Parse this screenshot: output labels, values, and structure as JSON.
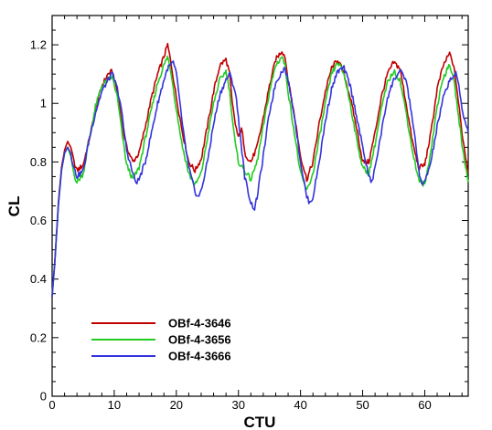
{
  "chart_data": {
    "type": "line",
    "title": "",
    "xlabel": "CTU",
    "ylabel": "CL",
    "xlim": [
      0,
      67
    ],
    "ylim": [
      0,
      1.3
    ],
    "x_ticks": [
      "0",
      "10",
      "20",
      "30",
      "40",
      "50",
      "60"
    ],
    "y_ticks": [
      "0",
      "0.2",
      "0.4",
      "0.6",
      "0.8",
      "1",
      "1.2"
    ],
    "grid": false,
    "legend_position": "bottom-left",
    "series": [
      {
        "name": "OBf-4-3646",
        "color": "#c00000",
        "points": [
          [
            0,
            0.34
          ],
          [
            0.5,
            0.48
          ],
          [
            1,
            0.66
          ],
          [
            1.5,
            0.78
          ],
          [
            2,
            0.84
          ],
          [
            2.5,
            0.87
          ],
          [
            3,
            0.85
          ],
          [
            3.5,
            0.8
          ],
          [
            4,
            0.77
          ],
          [
            5,
            0.79
          ],
          [
            6,
            0.88
          ],
          [
            7,
            0.98
          ],
          [
            8,
            1.06
          ],
          [
            9,
            1.1
          ],
          [
            9.7,
            1.11
          ],
          [
            10.5,
            1.04
          ],
          [
            11,
            0.97
          ],
          [
            11.5,
            0.9
          ],
          [
            12,
            0.85
          ],
          [
            13,
            0.8
          ],
          [
            14,
            0.83
          ],
          [
            15,
            0.92
          ],
          [
            16,
            1.02
          ],
          [
            17,
            1.1
          ],
          [
            18,
            1.16
          ],
          [
            18.6,
            1.2
          ],
          [
            19.2,
            1.13
          ],
          [
            20,
            1.02
          ],
          [
            21,
            0.9
          ],
          [
            22,
            0.8
          ],
          [
            23,
            0.77
          ],
          [
            24,
            0.81
          ],
          [
            25,
            0.92
          ],
          [
            26,
            1.04
          ],
          [
            27,
            1.13
          ],
          [
            28,
            1.15
          ],
          [
            28.6,
            1.1
          ],
          [
            29,
            1.0
          ],
          [
            29.5,
            0.93
          ],
          [
            30,
            0.88
          ],
          [
            30.5,
            0.92
          ],
          [
            31,
            0.83
          ],
          [
            32,
            0.8
          ],
          [
            33,
            0.85
          ],
          [
            34,
            0.95
          ],
          [
            35,
            1.06
          ],
          [
            36,
            1.15
          ],
          [
            37,
            1.18
          ],
          [
            37.5,
            1.16
          ],
          [
            38,
            1.08
          ],
          [
            39,
            0.96
          ],
          [
            40,
            0.82
          ],
          [
            41,
            0.74
          ],
          [
            42,
            0.8
          ],
          [
            43,
            0.93
          ],
          [
            44,
            1.04
          ],
          [
            45,
            1.12
          ],
          [
            46,
            1.15
          ],
          [
            47,
            1.1
          ],
          [
            48,
            1.02
          ],
          [
            49,
            0.92
          ],
          [
            50,
            0.8
          ],
          [
            51,
            0.8
          ],
          [
            52,
            0.9
          ],
          [
            53,
            1.02
          ],
          [
            54,
            1.1
          ],
          [
            55,
            1.14
          ],
          [
            56,
            1.12
          ],
          [
            57,
            1.0
          ],
          [
            58,
            0.87
          ],
          [
            59,
            0.78
          ],
          [
            60,
            0.79
          ],
          [
            61,
            0.9
          ],
          [
            62,
            1.05
          ],
          [
            63,
            1.13
          ],
          [
            64,
            1.17
          ],
          [
            64.5,
            1.14
          ],
          [
            65,
            1.08
          ],
          [
            66,
            0.9
          ],
          [
            67,
            0.76
          ]
        ]
      },
      {
        "name": "OBf-4-3656",
        "color": "#22cc22",
        "points": [
          [
            0,
            0.34
          ],
          [
            0.5,
            0.48
          ],
          [
            1,
            0.65
          ],
          [
            1.5,
            0.77
          ],
          [
            2,
            0.83
          ],
          [
            2.5,
            0.85
          ],
          [
            3,
            0.82
          ],
          [
            3.5,
            0.76
          ],
          [
            4,
            0.73
          ],
          [
            5,
            0.76
          ],
          [
            6,
            0.88
          ],
          [
            7,
            0.99
          ],
          [
            8,
            1.06
          ],
          [
            9,
            1.08
          ],
          [
            9.7,
            1.09
          ],
          [
            10.5,
            1.02
          ],
          [
            11,
            0.94
          ],
          [
            11.5,
            0.86
          ],
          [
            12,
            0.79
          ],
          [
            13,
            0.74
          ],
          [
            14,
            0.78
          ],
          [
            15,
            0.88
          ],
          [
            16,
            0.98
          ],
          [
            17,
            1.07
          ],
          [
            18,
            1.13
          ],
          [
            18.6,
            1.16
          ],
          [
            19.2,
            1.1
          ],
          [
            20,
            0.98
          ],
          [
            21,
            0.85
          ],
          [
            22,
            0.76
          ],
          [
            23,
            0.72
          ],
          [
            24,
            0.76
          ],
          [
            25,
            0.88
          ],
          [
            26,
            1.0
          ],
          [
            27,
            1.08
          ],
          [
            28,
            1.11
          ],
          [
            28.6,
            1.04
          ],
          [
            29,
            0.95
          ],
          [
            29.5,
            0.86
          ],
          [
            30,
            0.8
          ],
          [
            31,
            0.77
          ],
          [
            32,
            0.74
          ],
          [
            33,
            0.8
          ],
          [
            34,
            0.92
          ],
          [
            35,
            1.04
          ],
          [
            36,
            1.13
          ],
          [
            37,
            1.16
          ],
          [
            37.5,
            1.13
          ],
          [
            38,
            1.04
          ],
          [
            39,
            0.9
          ],
          [
            40,
            0.76
          ],
          [
            41,
            0.7
          ],
          [
            42,
            0.76
          ],
          [
            43,
            0.88
          ],
          [
            44,
            1.0
          ],
          [
            45,
            1.1
          ],
          [
            46,
            1.14
          ],
          [
            47,
            1.1
          ],
          [
            48,
            1.0
          ],
          [
            49,
            0.88
          ],
          [
            50,
            0.78
          ],
          [
            51,
            0.76
          ],
          [
            52,
            0.86
          ],
          [
            53,
            0.98
          ],
          [
            54,
            1.07
          ],
          [
            55,
            1.11
          ],
          [
            56,
            1.08
          ],
          [
            57,
            0.97
          ],
          [
            58,
            0.84
          ],
          [
            59,
            0.74
          ],
          [
            60,
            0.72
          ],
          [
            61,
            0.84
          ],
          [
            62,
            0.99
          ],
          [
            63,
            1.09
          ],
          [
            64,
            1.13
          ],
          [
            64.5,
            1.1
          ],
          [
            65,
            1.03
          ],
          [
            66,
            0.86
          ],
          [
            67,
            0.73
          ]
        ]
      },
      {
        "name": "OBf-4-3666",
        "color": "#3333dd",
        "points": [
          [
            0,
            0.34
          ],
          [
            0.5,
            0.48
          ],
          [
            1,
            0.65
          ],
          [
            1.5,
            0.77
          ],
          [
            2,
            0.83
          ],
          [
            2.5,
            0.85
          ],
          [
            3,
            0.83
          ],
          [
            3.5,
            0.78
          ],
          [
            4,
            0.75
          ],
          [
            5,
            0.77
          ],
          [
            6,
            0.88
          ],
          [
            7,
            0.97
          ],
          [
            8,
            1.04
          ],
          [
            9,
            1.08
          ],
          [
            9.7,
            1.1
          ],
          [
            10.5,
            1.05
          ],
          [
            11,
            1.0
          ],
          [
            11.5,
            0.92
          ],
          [
            12,
            0.84
          ],
          [
            13,
            0.76
          ],
          [
            13.5,
            0.73
          ],
          [
            14,
            0.74
          ],
          [
            15,
            0.8
          ],
          [
            16,
            0.9
          ],
          [
            17,
            1.0
          ],
          [
            18,
            1.08
          ],
          [
            18.6,
            1.12
          ],
          [
            19.5,
            1.14
          ],
          [
            20,
            1.1
          ],
          [
            20.5,
            1.02
          ],
          [
            21,
            0.92
          ],
          [
            22,
            0.78
          ],
          [
            23,
            0.7
          ],
          [
            23.5,
            0.68
          ],
          [
            24,
            0.7
          ],
          [
            25,
            0.8
          ],
          [
            26,
            0.93
          ],
          [
            27,
            1.03
          ],
          [
            28,
            1.08
          ],
          [
            28.6,
            1.1
          ],
          [
            29.5,
            1.04
          ],
          [
            30,
            0.95
          ],
          [
            31,
            0.75
          ],
          [
            32,
            0.66
          ],
          [
            32.6,
            0.64
          ],
          [
            33,
            0.68
          ],
          [
            34,
            0.82
          ],
          [
            35,
            0.97
          ],
          [
            36,
            1.07
          ],
          [
            37,
            1.11
          ],
          [
            37.5,
            1.12
          ],
          [
            38,
            1.08
          ],
          [
            39,
            0.96
          ],
          [
            40,
            0.8
          ],
          [
            41,
            0.68
          ],
          [
            41.5,
            0.66
          ],
          [
            42,
            0.68
          ],
          [
            43,
            0.8
          ],
          [
            44,
            0.94
          ],
          [
            45,
            1.05
          ],
          [
            46,
            1.11
          ],
          [
            47,
            1.12
          ],
          [
            48,
            1.06
          ],
          [
            49,
            0.96
          ],
          [
            50,
            0.85
          ],
          [
            51,
            0.75
          ],
          [
            51.5,
            0.73
          ],
          [
            52,
            0.78
          ],
          [
            53,
            0.9
          ],
          [
            54,
            1.02
          ],
          [
            55,
            1.08
          ],
          [
            56,
            1.11
          ],
          [
            57,
            1.08
          ],
          [
            58,
            0.95
          ],
          [
            59,
            0.78
          ],
          [
            59.5,
            0.72
          ],
          [
            60,
            0.73
          ],
          [
            61,
            0.8
          ],
          [
            62,
            0.92
          ],
          [
            63,
            1.02
          ],
          [
            64,
            1.08
          ],
          [
            65,
            1.1
          ],
          [
            65.5,
            1.06
          ],
          [
            66,
            0.98
          ],
          [
            67,
            0.9
          ]
        ]
      }
    ]
  }
}
